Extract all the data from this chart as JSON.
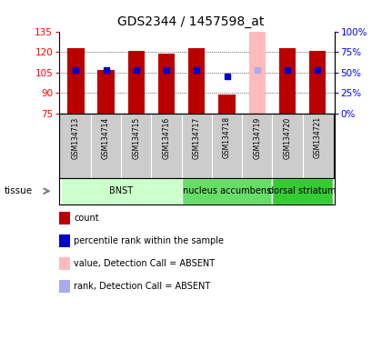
{
  "title": "GDS2344 / 1457598_at",
  "samples": [
    "GSM134713",
    "GSM134714",
    "GSM134715",
    "GSM134716",
    "GSM134717",
    "GSM134718",
    "GSM134719",
    "GSM134720",
    "GSM134721"
  ],
  "values": [
    123,
    107,
    121,
    119,
    123,
    89,
    135,
    123,
    121
  ],
  "ranks": [
    107,
    107,
    107,
    107,
    107,
    102,
    107,
    107,
    107
  ],
  "absent": [
    false,
    false,
    false,
    false,
    false,
    false,
    true,
    false,
    false
  ],
  "ylim_left": [
    75,
    135
  ],
  "ylim_right": [
    0,
    100
  ],
  "yticks_left": [
    75,
    90,
    105,
    120,
    135
  ],
  "yticks_right": [
    0,
    25,
    50,
    75,
    100
  ],
  "ytick_labels_right": [
    "0%",
    "25%",
    "50%",
    "75%",
    "100%"
  ],
  "bar_color_present": "#bb0000",
  "bar_color_absent": "#ffbbbb",
  "rank_color_present": "#0000cc",
  "rank_color_absent": "#aaaaee",
  "bar_width": 0.55,
  "rank_marker_size": 4,
  "bg_sample_labels": "#cccccc",
  "group_data": [
    {
      "indices": [
        0,
        1,
        2,
        3
      ],
      "label": "BNST",
      "color": "#ccffcc"
    },
    {
      "indices": [
        4,
        5,
        6
      ],
      "label": "nucleus accumbens",
      "color": "#66dd66"
    },
    {
      "indices": [
        7,
        8
      ],
      "label": "dorsal striatum",
      "color": "#33cc33"
    }
  ],
  "legend_items": [
    {
      "color": "#bb0000",
      "label": "count"
    },
    {
      "color": "#0000cc",
      "label": "percentile rank within the sample"
    },
    {
      "color": "#ffbbbb",
      "label": "value, Detection Call = ABSENT"
    },
    {
      "color": "#aaaaee",
      "label": "rank, Detection Call = ABSENT"
    }
  ]
}
